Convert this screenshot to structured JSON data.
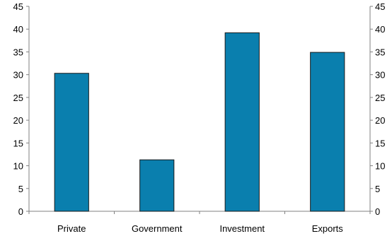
{
  "chart_data": {
    "type": "bar",
    "categories": [
      "Private",
      "Government",
      "Investment",
      "Exports"
    ],
    "values": [
      30.3,
      11.3,
      39.2,
      34.9
    ],
    "ylim": [
      0,
      45
    ],
    "yticks": [
      "0",
      "5",
      "10",
      "15",
      "20",
      "25",
      "30",
      "35",
      "40",
      "45"
    ],
    "secondary_yticks": [
      "0",
      "5",
      "10",
      "15",
      "20",
      "25",
      "30",
      "35",
      "40",
      "45"
    ],
    "grid": false,
    "legend": "none",
    "bar_color": "#0a7fae",
    "bar_edge_color": "#1a1a1a",
    "axis_color": "#808080"
  }
}
